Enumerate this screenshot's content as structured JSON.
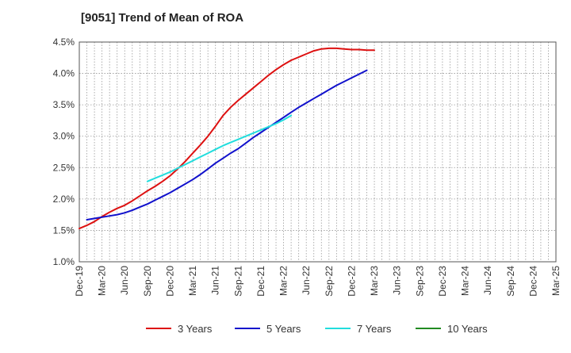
{
  "chart_data": {
    "type": "line",
    "title": "[9051]  Trend of Mean of ROA",
    "xlabel": "",
    "ylabel": "",
    "x_ticks": [
      "Dec-19",
      "Mar-20",
      "Jun-20",
      "Sep-20",
      "Dec-20",
      "Mar-21",
      "Jun-21",
      "Sep-21",
      "Dec-21",
      "Mar-22",
      "Jun-22",
      "Sep-22",
      "Dec-22",
      "Mar-23",
      "Jun-23",
      "Sep-23",
      "Dec-23",
      "Mar-24",
      "Jun-24",
      "Sep-24",
      "Dec-24",
      "Mar-25"
    ],
    "y_ticks": [
      "1.0%",
      "1.5%",
      "2.0%",
      "2.5%",
      "3.0%",
      "3.5%",
      "4.0%",
      "4.5%"
    ],
    "ylim": [
      1.0,
      4.5
    ],
    "grid": true,
    "legend_position": "bottom",
    "series": [
      {
        "name": "3 Years",
        "color": "#dd1111",
        "start_index": 0,
        "values": [
          1.53,
          1.58,
          1.64,
          1.72,
          1.79,
          1.85,
          1.9,
          1.97,
          2.05,
          2.13,
          2.2,
          2.28,
          2.37,
          2.48,
          2.6,
          2.73,
          2.86,
          3.0,
          3.16,
          3.33,
          3.46,
          3.57,
          3.67,
          3.77,
          3.87,
          3.97,
          4.06,
          4.14,
          4.21,
          4.26,
          4.31,
          4.36,
          4.39,
          4.4,
          4.4,
          4.39,
          4.38,
          4.38,
          4.37,
          4.37
        ]
      },
      {
        "name": "5 Years",
        "color": "#1111cc",
        "start_index": 1,
        "values": [
          1.67,
          1.69,
          1.71,
          1.73,
          1.75,
          1.78,
          1.82,
          1.87,
          1.92,
          1.98,
          2.04,
          2.1,
          2.17,
          2.24,
          2.31,
          2.39,
          2.48,
          2.57,
          2.65,
          2.73,
          2.8,
          2.89,
          2.98,
          3.06,
          3.14,
          3.22,
          3.3,
          3.38,
          3.46,
          3.53,
          3.6,
          3.67,
          3.74,
          3.81,
          3.87,
          3.93,
          3.99,
          4.05
        ]
      },
      {
        "name": "7 Years",
        "color": "#22dddd",
        "start_index": 9,
        "values": [
          2.28,
          2.33,
          2.38,
          2.43,
          2.49,
          2.55,
          2.61,
          2.67,
          2.73,
          2.79,
          2.85,
          2.9,
          2.95,
          3.0,
          3.05,
          3.1,
          3.15,
          3.2,
          3.26,
          3.33
        ]
      },
      {
        "name": "10 Years",
        "color": "#228b22",
        "start_index": 0,
        "values": []
      }
    ]
  }
}
